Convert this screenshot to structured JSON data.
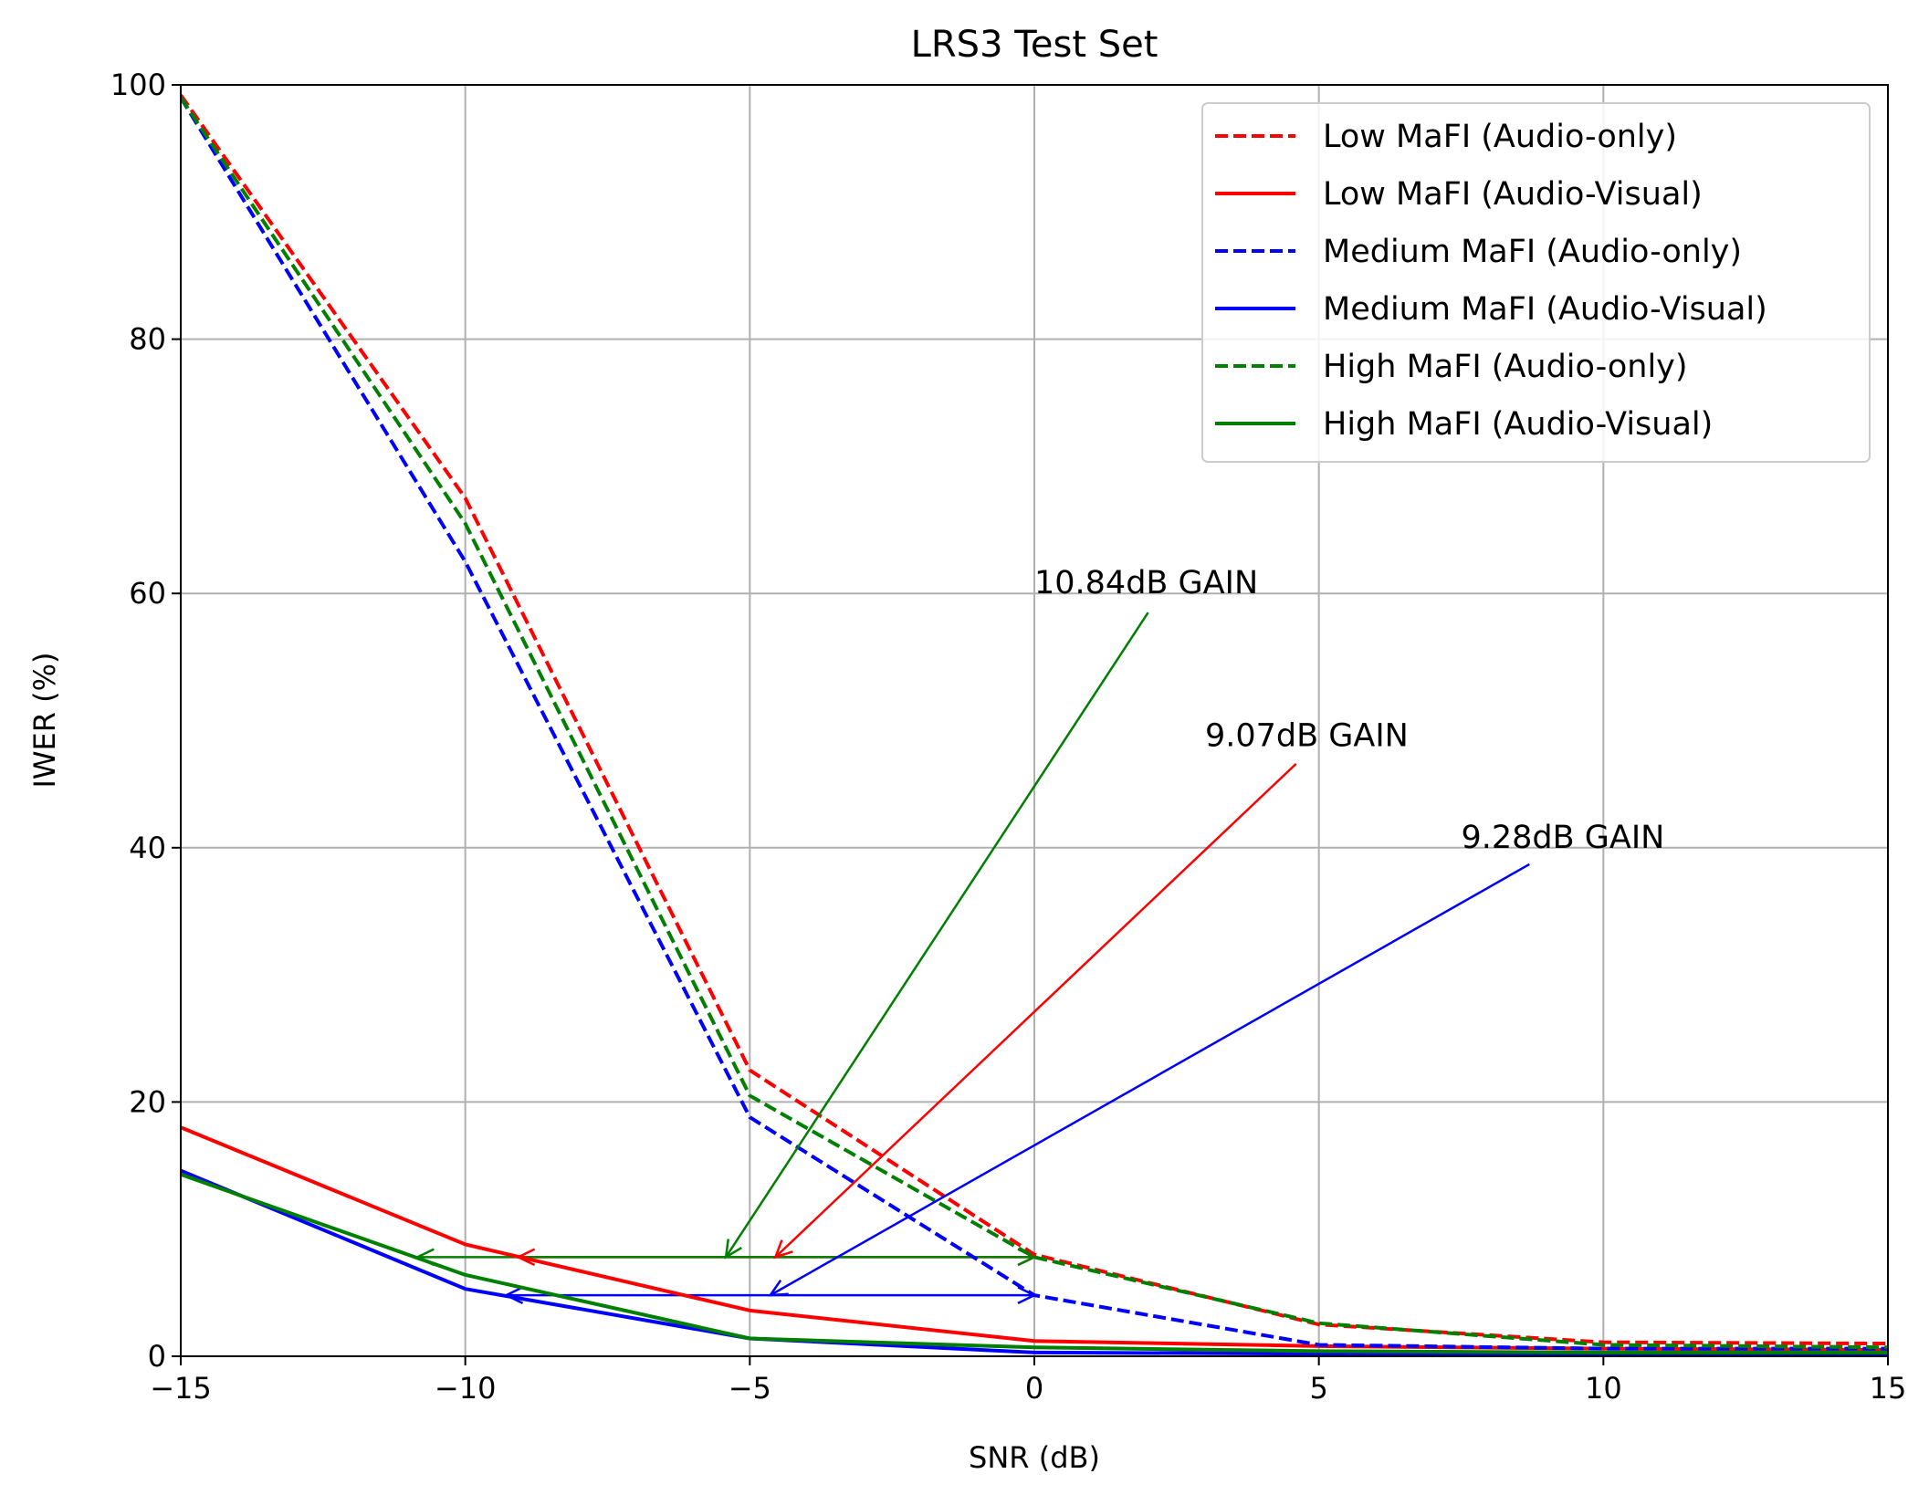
{
  "chart_data": {
    "type": "line",
    "title": "LRS3 Test Set",
    "xlabel": "SNR (dB)",
    "ylabel": "IWER (%)",
    "xlim": [
      -15,
      15
    ],
    "ylim": [
      0,
      100
    ],
    "xticks": [
      -15,
      -10,
      -5,
      0,
      5,
      10,
      15
    ],
    "xtick_labels": [
      "−15",
      "−10",
      "−5",
      "0",
      "5",
      "10",
      "15"
    ],
    "yticks": [
      0,
      20,
      40,
      60,
      80,
      100
    ],
    "ytick_labels": [
      "0",
      "20",
      "40",
      "60",
      "80",
      "100"
    ],
    "grid": true,
    "legend_position": "upper-right",
    "x": [
      -15,
      -10,
      -5,
      0,
      5,
      10,
      15
    ],
    "series": [
      {
        "name": "Low MaFI (Audio-only)",
        "color": "#ff0000",
        "style": "dashed",
        "values": [
          99.2,
          67.5,
          22.5,
          8.0,
          2.5,
          1.1,
          1.0
        ]
      },
      {
        "name": "Low MaFI (Audio-Visual)",
        "color": "#ff0000",
        "style": "solid",
        "values": [
          18.0,
          8.8,
          3.6,
          1.2,
          0.8,
          0.6,
          0.5
        ]
      },
      {
        "name": "Medium MaFI (Audio-only)",
        "color": "#0000ff",
        "style": "dashed",
        "values": [
          99.0,
          62.5,
          18.8,
          4.8,
          0.9,
          0.6,
          0.6
        ]
      },
      {
        "name": "Medium MaFI (Audio-Visual)",
        "color": "#0000ff",
        "style": "solid",
        "values": [
          14.6,
          5.3,
          1.4,
          0.3,
          0.2,
          0.2,
          0.2
        ]
      },
      {
        "name": "High MaFI (Audio-only)",
        "color": "#008000",
        "style": "dashed",
        "values": [
          99.0,
          65.5,
          20.5,
          7.8,
          2.6,
          0.9,
          0.7
        ]
      },
      {
        "name": "High MaFI (Audio-Visual)",
        "color": "#008000",
        "style": "solid",
        "values": [
          14.3,
          6.4,
          1.4,
          0.7,
          0.4,
          0.3,
          0.3
        ]
      }
    ],
    "gain_arrows": [
      {
        "color": "#ff0000",
        "x_from": 0.0,
        "x_to": -9.07,
        "y": 7.8
      },
      {
        "color": "#0000ff",
        "x_from": 0.0,
        "x_to": -9.28,
        "y": 4.8
      },
      {
        "color": "#008000",
        "x_from": 0.0,
        "x_to": -10.84,
        "y": 7.8
      }
    ],
    "annotations": [
      {
        "text": "10.84dB GAIN",
        "color": "#008000",
        "text_x": 0.0,
        "text_y": 60.0,
        "line_start_x": 2.0,
        "line_start_y": 58.5,
        "arrow_x": -5.42,
        "arrow_y": 7.8
      },
      {
        "text": "9.07dB GAIN",
        "color": "#ff0000",
        "text_x": 3.0,
        "text_y": 48.0,
        "line_start_x": 4.6,
        "line_start_y": 46.6,
        "arrow_x": -4.55,
        "arrow_y": 7.8
      },
      {
        "text": "9.28dB GAIN",
        "color": "#0000ff",
        "text_x": 7.5,
        "text_y": 40.0,
        "line_start_x": 8.7,
        "line_start_y": 38.7,
        "arrow_x": -4.64,
        "arrow_y": 4.8
      }
    ]
  }
}
